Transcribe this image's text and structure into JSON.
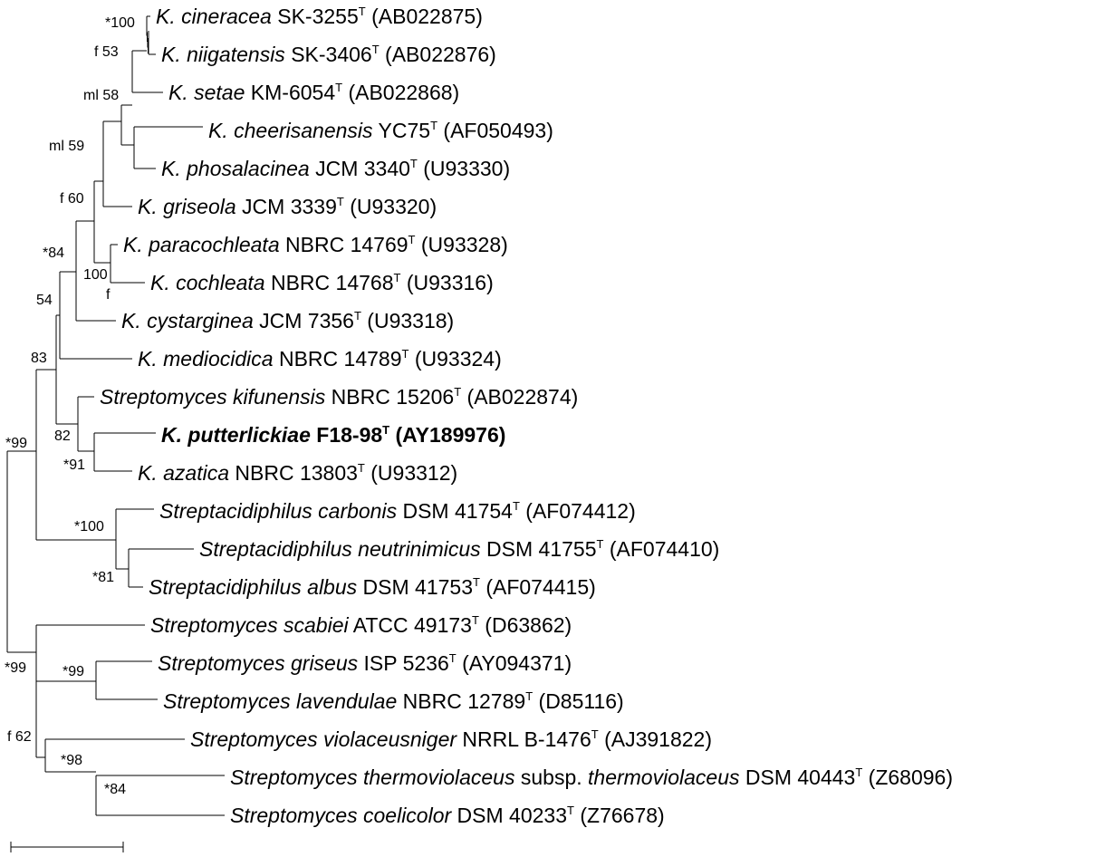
{
  "tree": {
    "leaves": [
      {
        "id": "cineracea",
        "parts": [
          {
            "t": "K. cineracea",
            "i": true
          },
          {
            "t": " SK-3255"
          },
          {
            "t": "T",
            "sup": true
          },
          {
            "t": " (AB022875)"
          }
        ]
      },
      {
        "id": "niigatensis",
        "parts": [
          {
            "t": "K. niigatensis",
            "i": true
          },
          {
            "t": " SK-3406"
          },
          {
            "t": "T",
            "sup": true
          },
          {
            "t": " (AB022876)"
          }
        ]
      },
      {
        "id": "setae",
        "parts": [
          {
            "t": "K. setae",
            "i": true
          },
          {
            "t": " KM-6054"
          },
          {
            "t": "T",
            "sup": true
          },
          {
            "t": " (AB022868)"
          }
        ]
      },
      {
        "id": "cheerisanensis",
        "parts": [
          {
            "t": "K. cheerisanensis",
            "i": true
          },
          {
            "t": " YC75"
          },
          {
            "t": "T",
            "sup": true
          },
          {
            "t": " (AF050493)"
          }
        ]
      },
      {
        "id": "phosalacinea",
        "parts": [
          {
            "t": "K. phosalacinea",
            "i": true
          },
          {
            "t": " JCM 3340"
          },
          {
            "t": "T",
            "sup": true
          },
          {
            "t": " (U93330)"
          }
        ]
      },
      {
        "id": "griseola",
        "parts": [
          {
            "t": "K. griseola",
            "i": true
          },
          {
            "t": " JCM 3339"
          },
          {
            "t": "T",
            "sup": true
          },
          {
            "t": " (U93320)"
          }
        ]
      },
      {
        "id": "paracochleata",
        "parts": [
          {
            "t": "K. paracochleata",
            "i": true
          },
          {
            "t": " NBRC 14769"
          },
          {
            "t": "T",
            "sup": true
          },
          {
            "t": " (U93328)"
          }
        ]
      },
      {
        "id": "cochleata",
        "parts": [
          {
            "t": "K. cochleata",
            "i": true
          },
          {
            "t": " NBRC 14768"
          },
          {
            "t": "T",
            "sup": true
          },
          {
            "t": " (U93316)"
          }
        ]
      },
      {
        "id": "cystarginea",
        "parts": [
          {
            "t": "K. cystarginea",
            "i": true
          },
          {
            "t": " JCM 7356"
          },
          {
            "t": "T",
            "sup": true
          },
          {
            "t": " (U93318)"
          }
        ]
      },
      {
        "id": "mediocidica",
        "parts": [
          {
            "t": "K. mediocidica",
            "i": true
          },
          {
            "t": " NBRC 14789"
          },
          {
            "t": "T",
            "sup": true
          },
          {
            "t": " (U93324)"
          }
        ]
      },
      {
        "id": "kifunensis",
        "parts": [
          {
            "t": "Streptomyces kifunensis",
            "i": true
          },
          {
            "t": " NBRC 15206"
          },
          {
            "t": "T",
            "sup": true
          },
          {
            "t": " (AB022874)"
          }
        ]
      },
      {
        "id": "putterlickiae",
        "bold": true,
        "parts": [
          {
            "t": "K. putterlickiae",
            "i": true
          },
          {
            "t": " F18-98"
          },
          {
            "t": "T",
            "sup": true
          },
          {
            "t": " (AY189976)"
          }
        ]
      },
      {
        "id": "azatica",
        "parts": [
          {
            "t": "K. azatica",
            "i": true
          },
          {
            "t": " NBRC 13803"
          },
          {
            "t": "T",
            "sup": true
          },
          {
            "t": " (U93312)"
          }
        ]
      },
      {
        "id": "carbonis",
        "parts": [
          {
            "t": "Streptacidiphilus carbonis",
            "i": true
          },
          {
            "t": " DSM 41754"
          },
          {
            "t": "T",
            "sup": true
          },
          {
            "t": " (AF074412)"
          }
        ]
      },
      {
        "id": "neutrinimicus",
        "parts": [
          {
            "t": "Streptacidiphilus neutrinimicus",
            "i": true
          },
          {
            "t": " DSM 41755"
          },
          {
            "t": "T",
            "sup": true
          },
          {
            "t": " (AF074410)"
          }
        ]
      },
      {
        "id": "albus",
        "parts": [
          {
            "t": "Streptacidiphilus albus",
            "i": true
          },
          {
            "t": " DSM 41753"
          },
          {
            "t": "T",
            "sup": true
          },
          {
            "t": " (AF074415)"
          }
        ]
      },
      {
        "id": "scabiei",
        "parts": [
          {
            "t": "Streptomyces scabiei",
            "i": true
          },
          {
            "t": " ATCC 49173"
          },
          {
            "t": "T",
            "sup": true
          },
          {
            "t": " (D63862)"
          }
        ]
      },
      {
        "id": "griseus",
        "parts": [
          {
            "t": "Streptomyces griseus",
            "i": true
          },
          {
            "t": " ISP 5236"
          },
          {
            "t": "T",
            "sup": true
          },
          {
            "t": " (AY094371)"
          }
        ]
      },
      {
        "id": "lavendulae",
        "parts": [
          {
            "t": "Streptomyces lavendulae",
            "i": true
          },
          {
            "t": " NBRC 12789"
          },
          {
            "t": "T",
            "sup": true
          },
          {
            "t": " (D85116)"
          }
        ]
      },
      {
        "id": "violaceusniger",
        "parts": [
          {
            "t": "Streptomyces violaceusniger",
            "i": true
          },
          {
            "t": " NRRL B-1476"
          },
          {
            "t": "T",
            "sup": true
          },
          {
            "t": " (AJ391822)"
          }
        ]
      },
      {
        "id": "thermoviolaceus",
        "parts": [
          {
            "t": "Streptomyces thermoviolaceus",
            "i": true
          },
          {
            "t": " subsp. "
          },
          {
            "t": "thermoviolaceus",
            "i": true
          },
          {
            "t": " DSM 40443"
          },
          {
            "t": "T",
            "sup": true
          },
          {
            "t": " (Z68096)"
          }
        ]
      },
      {
        "id": "coelicolor",
        "parts": [
          {
            "t": "Streptomyces coelicolor",
            "i": true
          },
          {
            "t": " DSM 40233"
          },
          {
            "t": "T",
            "sup": true
          },
          {
            "t": " (Z76678)"
          }
        ]
      }
    ],
    "support": [
      {
        "id": "n-cin-nii",
        "label": "*100"
      },
      {
        "id": "n-setae",
        "label": "f 53"
      },
      {
        "id": "n-ml58",
        "label": "ml 58"
      },
      {
        "id": "n-ml59",
        "label": "ml 59"
      },
      {
        "id": "n-f60",
        "label": "f 60"
      },
      {
        "id": "n-para-coch",
        "label": "100"
      },
      {
        "id": "n-para-coch-f",
        "label": "f"
      },
      {
        "id": "n-84",
        "label": "*84"
      },
      {
        "id": "n-54",
        "label": "54"
      },
      {
        "id": "n-83",
        "label": "83"
      },
      {
        "id": "n-82",
        "label": "82"
      },
      {
        "id": "n-91",
        "label": "*91"
      },
      {
        "id": "n-99a",
        "label": "*99"
      },
      {
        "id": "n-100b",
        "label": "*100"
      },
      {
        "id": "n-81",
        "label": "*81"
      },
      {
        "id": "n-99b",
        "label": "*99"
      },
      {
        "id": "n-99c",
        "label": "*99"
      },
      {
        "id": "n-f62",
        "label": "f 62"
      },
      {
        "id": "n-98",
        "label": "*98"
      },
      {
        "id": "n-84b",
        "label": "*84"
      }
    ]
  }
}
